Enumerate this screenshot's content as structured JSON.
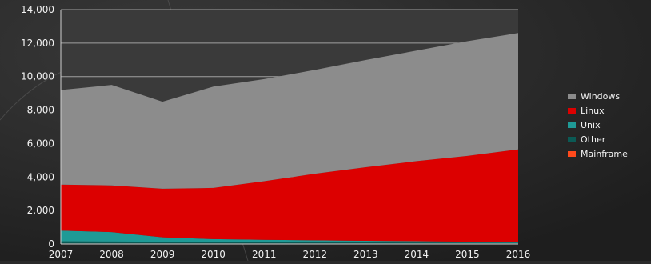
{
  "chart_data": {
    "type": "area",
    "stacked": true,
    "x": [
      "2007",
      "2008",
      "2009",
      "2010",
      "2011",
      "2012",
      "2013",
      "2014",
      "2015",
      "2016"
    ],
    "series": [
      {
        "name": "Mainframe",
        "color": "#ff4a1c",
        "values": [
          30,
          30,
          30,
          30,
          30,
          30,
          30,
          30,
          30,
          30
        ]
      },
      {
        "name": "Other",
        "color": "#0b5a55",
        "values": [
          130,
          120,
          110,
          100,
          90,
          80,
          70,
          60,
          50,
          40
        ]
      },
      {
        "name": "Unix",
        "color": "#1f9a96",
        "values": [
          640,
          560,
          260,
          160,
          130,
          110,
          90,
          80,
          60,
          50
        ]
      },
      {
        "name": "Linux",
        "color": "#dc0000",
        "values": [
          2750,
          2790,
          2900,
          3060,
          3500,
          3980,
          4400,
          4780,
          5120,
          5530
        ]
      },
      {
        "name": "Windows",
        "color": "#8c8c8c",
        "values": [
          5650,
          6000,
          5200,
          6050,
          6100,
          6200,
          6400,
          6600,
          6850,
          6950
        ]
      }
    ],
    "legend_order": [
      "Windows",
      "Linux",
      "Unix",
      "Other",
      "Mainframe"
    ],
    "ylim": [
      0,
      14000
    ],
    "yticks": [
      "0",
      "2,000",
      "4,000",
      "6,000",
      "8,000",
      "10,000",
      "12,000",
      "14,000"
    ],
    "grid": true,
    "legend_position": "right",
    "title": "",
    "xlabel": "",
    "ylabel": ""
  }
}
